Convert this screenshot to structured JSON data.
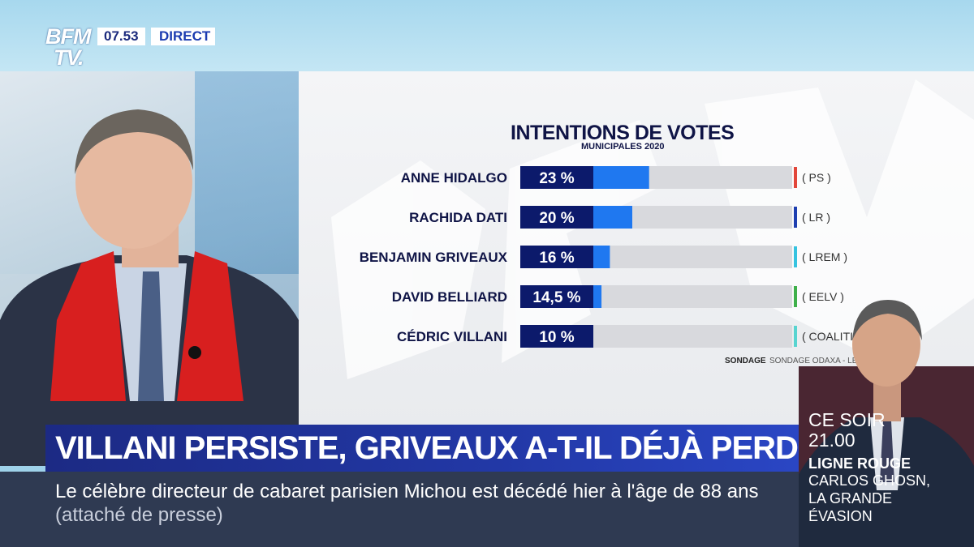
{
  "channel": {
    "logo_line1": "BFM",
    "logo_line2": "TV.",
    "time": "07.53",
    "live_label": "DIRECT"
  },
  "chart_data": {
    "type": "bar",
    "title": "INTENTIONS DE VOTES",
    "subtitle": "MUNICIPALES 2020",
    "categories": [
      "ANNE HIDALGO",
      "RACHIDA DATI",
      "BENJAMIN GRIVEAUX",
      "DAVID BELLIARD",
      "CÉDRIC VILLANI"
    ],
    "values": [
      23,
      20,
      16,
      14.5,
      10
    ],
    "value_labels": [
      "23 %",
      "20 %",
      "16 %",
      "14,5 %",
      "10 %"
    ],
    "parties": [
      "( PS )",
      "( LR )",
      "( LREM )",
      "( EELV )",
      "( COALITION MAT )"
    ],
    "party_colors": [
      "#e2463a",
      "#1e3fb0",
      "#36c3e0",
      "#3fb04a",
      "#58d4d0"
    ],
    "bar_color": "#1f78f0",
    "label_box_color": "#0c1a6b",
    "track_color": "#d8d9dd",
    "xlim": [
      0,
      100
    ],
    "source_label": "SONDAGE",
    "source_name": "SONDAGE ODAXA - LE FIGARO"
  },
  "headline": "VILLANI PERSISTE, GRIVEAUX A-T-IL DÉJÀ PERDU ?",
  "ticker": {
    "text": "Le célèbre directeur de cabaret parisien Michou est décédé hier à l'âge de 88 ans",
    "source": "(attaché de presse)"
  },
  "promo": {
    "time_label": "CE SOIR",
    "time": "21.00",
    "show": "LIGNE ROUGE",
    "line1": "CARLOS GHOSN,",
    "line2": "LA GRANDE",
    "line3": "ÉVASION"
  }
}
